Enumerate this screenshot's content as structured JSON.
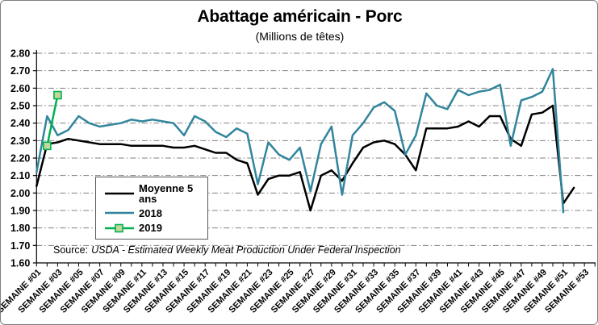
{
  "chart": {
    "title": "Abattage américain - Porc",
    "subtitle": "(Millions de têtes)",
    "source_prefix": "Source:",
    "source_text": "USDA - Estimated Weekly Meat Production Under Federal Inspection"
  },
  "chart_data": {
    "type": "line",
    "title": "Abattage américain - Porc",
    "subtitle": "(Millions de têtes)",
    "grid": "horizontal-dash-dot",
    "legend_position": "middle-left",
    "y_axis": {
      "min": 1.6,
      "max": 2.8,
      "step": 0.1,
      "tick_labels": [
        "2.80",
        "2.70",
        "2.60",
        "2.50",
        "2.40",
        "2.30",
        "2.20",
        "2.10",
        "2.00",
        "1.90",
        "1.80",
        "1.70",
        "1.60"
      ]
    },
    "x_axis": {
      "total_weeks": 53,
      "label_every": 2,
      "tick_labels": [
        "SEMAINE #01",
        "SEMAINE #03",
        "SEMAINE #05",
        "SEMAINE #07",
        "SEMAINE #09",
        "SEMAINE #11",
        "SEMAINE #13",
        "SEMAINE #15",
        "SEMAINE #17",
        "SEMAINE #19",
        "SEMAINE #21",
        "SEMAINE #23",
        "SEMAINE #25",
        "SEMAINE #27",
        "SEMAINE #29",
        "SEMAINE #31",
        "SEMAINE #33",
        "SEMAINE #35",
        "SEMAINE #37",
        "SEMAINE #39",
        "SEMAINE #41",
        "SEMAINE #43",
        "SEMAINE #45",
        "SEMAINE #47",
        "SEMAINE #49",
        "SEMAINE #51",
        "SEMAINE #53"
      ]
    },
    "series": [
      {
        "name": "Moyenne 5 ans",
        "color": "#000000",
        "start_week": 1,
        "values": [
          2.04,
          2.28,
          2.29,
          2.31,
          2.3,
          2.29,
          2.28,
          2.28,
          2.28,
          2.27,
          2.27,
          2.27,
          2.27,
          2.26,
          2.26,
          2.27,
          2.25,
          2.23,
          2.23,
          2.19,
          2.17,
          1.99,
          2.08,
          2.1,
          2.1,
          2.12,
          1.9,
          2.1,
          2.13,
          2.07,
          2.17,
          2.26,
          2.29,
          2.3,
          2.28,
          2.22,
          2.13,
          2.37,
          2.37,
          2.37,
          2.38,
          2.41,
          2.38,
          2.44,
          2.44,
          2.31,
          2.27,
          2.45,
          2.46,
          2.5,
          1.94,
          2.03
        ]
      },
      {
        "name": "2018",
        "color": "#31859C",
        "start_week": 1,
        "values": [
          2.12,
          2.44,
          2.33,
          2.36,
          2.44,
          2.4,
          2.38,
          2.39,
          2.4,
          2.42,
          2.41,
          2.42,
          2.41,
          2.4,
          2.33,
          2.44,
          2.41,
          2.35,
          2.32,
          2.37,
          2.34,
          2.05,
          2.29,
          2.22,
          2.19,
          2.26,
          2.01,
          2.28,
          2.38,
          1.99,
          2.33,
          2.4,
          2.49,
          2.52,
          2.47,
          2.22,
          2.33,
          2.57,
          2.5,
          2.48,
          2.59,
          2.56,
          2.58,
          2.59,
          2.62,
          2.27,
          2.53,
          2.55,
          2.58,
          2.71,
          1.89
        ]
      },
      {
        "name": "2019",
        "color": "#00B050",
        "marker": {
          "shape": "square",
          "fill": "#C4D79B"
        },
        "start_week": 2,
        "values": [
          2.27,
          2.56
        ]
      }
    ],
    "style_colors": {
      "gridline": "#808080",
      "axis": "#000000",
      "frame_border": "#7f7f7f",
      "background": "#ffffff"
    }
  }
}
